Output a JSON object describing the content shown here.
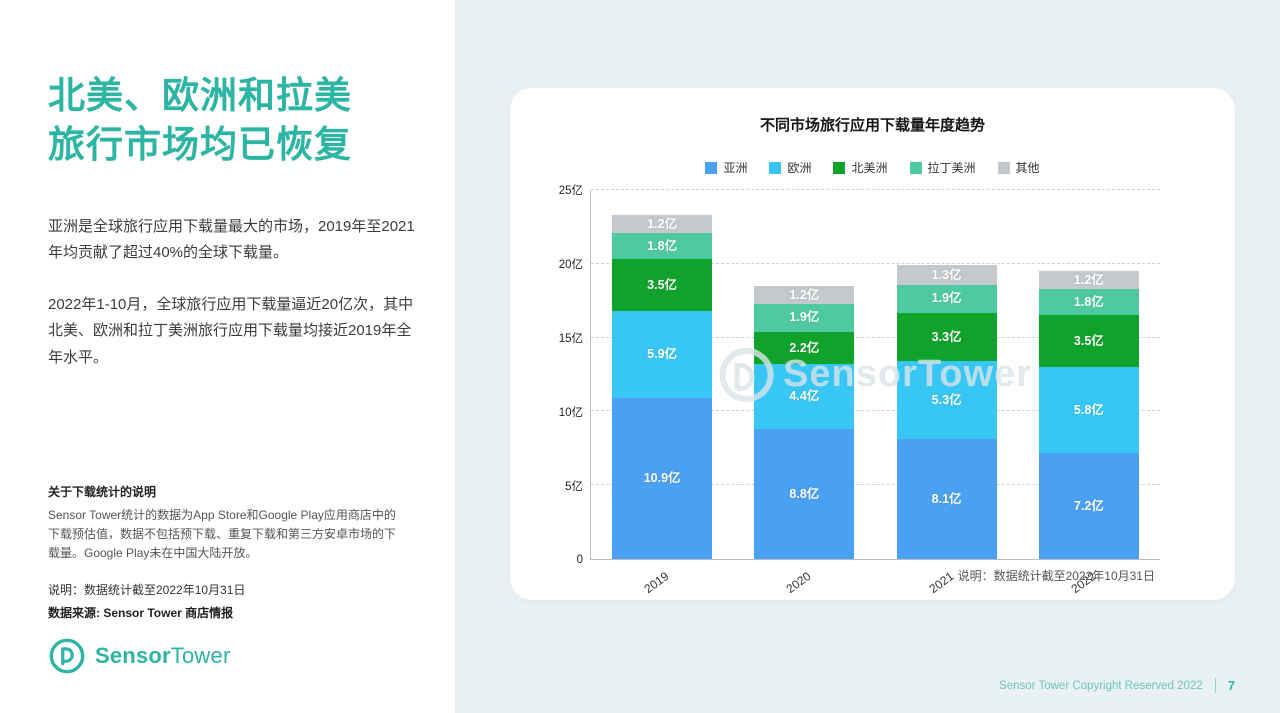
{
  "page": {
    "background": "#e9f1f4",
    "watermark": "SensorTower",
    "footer": {
      "copyright": "Sensor Tower Copyright Reserved 2022",
      "page_number": "7"
    }
  },
  "sidebar": {
    "title_line1": "北美、欧洲和拉美",
    "title_line2": "旅行市场均已恢复",
    "para1": "亚洲是全球旅行应用下载量最大的市场，2019年至2021年均贡献了超过40%的全球下载量。",
    "para2": "2022年1-10月，全球旅行应用下载量逼近20亿次，其中北美、欧洲和拉丁美洲旅行应用下载量均接近2019年全年水平。",
    "note_title": "关于下载统计的说明",
    "note_body": "Sensor Tower统计的数据为App Store和Google Play应用商店中的下载预估值，数据不包括预下载、重复下载和第三方安卓市场的下载量。Google Play未在中国大陆开放。",
    "note_cutoff": "说明：数据统计截至2022年10月31日",
    "source": "数据来源: Sensor Tower 商店情报",
    "logo": {
      "sensor": "Sensor",
      "tower": "Tower"
    }
  },
  "card": {
    "footnote": "说明：数据统计截至2022年10月31日"
  },
  "chart_data": {
    "type": "bar",
    "stacked": true,
    "title": "不同市场旅行应用下载量年度趋势",
    "unit": "亿",
    "categories": [
      "2019",
      "2020",
      "2021",
      "2022"
    ],
    "series": [
      {
        "name": "亚洲",
        "color": "#4aa0f2",
        "values": [
          10.9,
          8.8,
          8.1,
          7.2
        ]
      },
      {
        "name": "欧洲",
        "color": "#38c6f4",
        "values": [
          5.9,
          4.4,
          5.3,
          5.8
        ]
      },
      {
        "name": "北美洲",
        "color": "#0fa32c",
        "values": [
          3.5,
          2.2,
          3.3,
          3.5
        ]
      },
      {
        "name": "拉丁美洲",
        "color": "#4ec9a2",
        "values": [
          1.8,
          1.9,
          1.9,
          1.8
        ]
      },
      {
        "name": "其他",
        "color": "#c5c9cc",
        "values": [
          1.2,
          1.2,
          1.3,
          1.2
        ]
      }
    ],
    "ylim": [
      0,
      25
    ],
    "y_ticks": [
      {
        "value": 0,
        "label": "0"
      },
      {
        "value": 5,
        "label": "5亿"
      },
      {
        "value": 10,
        "label": "10亿"
      },
      {
        "value": 15,
        "label": "15亿"
      },
      {
        "value": 20,
        "label": "20亿"
      },
      {
        "value": 25,
        "label": "25亿"
      }
    ],
    "legend_position": "top",
    "grid": "dashed-horizontal"
  },
  "brand": {
    "teal": "#2db5a3"
  }
}
